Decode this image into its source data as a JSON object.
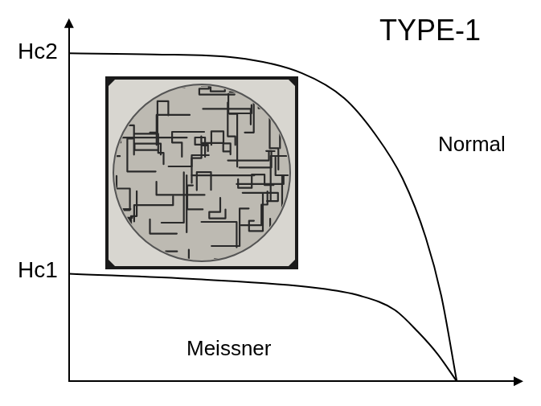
{
  "chart_data": {
    "type": "line",
    "annotations": [
      "TYPE-1",
      "Normal",
      "Meissner"
    ],
    "series": [
      {
        "color": "#000000",
        "x": [
          0,
          0.22,
          0.43,
          0.6,
          0.71,
          0.79,
          0.86,
          0.92,
          0.96,
          1.0
        ],
        "values": [
          2.99,
          2.98,
          2.95,
          2.81,
          2.58,
          2.25,
          1.85,
          1.31,
          0.78,
          0
        ]
      },
      {
        "color": "#000000",
        "x": [
          0,
          0.33,
          0.64,
          0.75,
          0.84,
          0.9,
          0.95,
          1.0
        ],
        "values": [
          0.98,
          0.93,
          0.85,
          0.78,
          0.65,
          0.45,
          0.25,
          0
        ]
      }
    ],
    "xlim": [
      0,
      1.155
    ],
    "ylim": [
      0,
      3.25
    ],
    "yticks": [
      {
        "value": 1.0,
        "label": "Hc1"
      },
      {
        "value": 3.0,
        "label": "Hc2"
      }
    ],
    "tick_labels": "y",
    "grid": false
  }
}
